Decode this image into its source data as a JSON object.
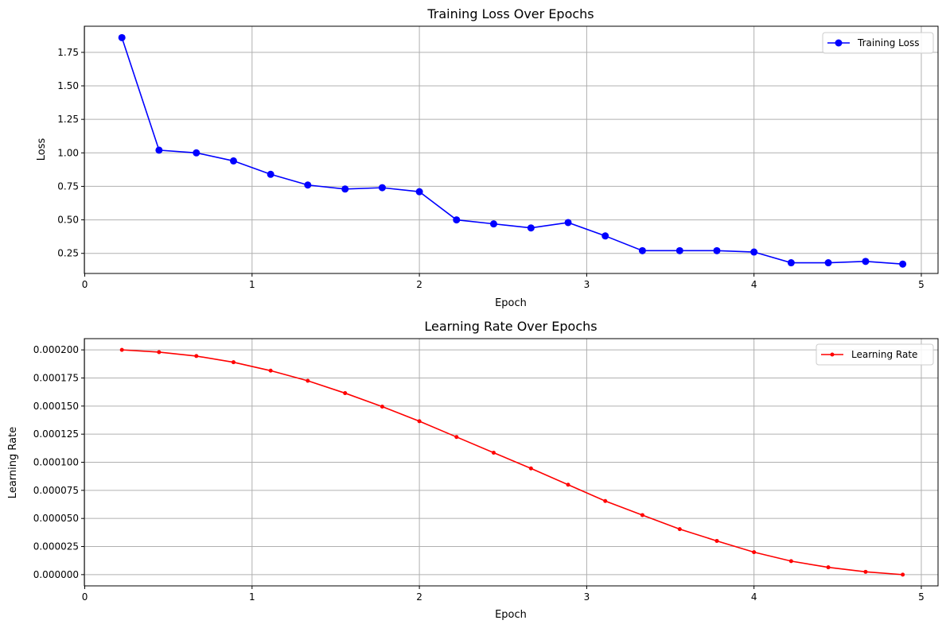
{
  "chart_data": [
    {
      "type": "line",
      "title": "Training Loss Over Epochs",
      "xlabel": "Epoch",
      "ylabel": "Loss",
      "xlim": [
        -0.0025,
        5.1
      ],
      "ylim": [
        0.1,
        1.945
      ],
      "xticks": [
        0,
        1,
        2,
        3,
        4,
        5
      ],
      "xtick_labels": [
        "0",
        "1",
        "2",
        "3",
        "4",
        "5"
      ],
      "yticks": [
        0.25,
        0.5,
        0.75,
        1.0,
        1.25,
        1.5,
        1.75
      ],
      "ytick_labels": [
        "0.25",
        "0.50",
        "0.75",
        "1.00",
        "1.25",
        "1.50",
        "1.75"
      ],
      "grid": true,
      "legend_position": "top-right",
      "series": [
        {
          "name": "Training Loss",
          "color": "#0000ff",
          "marker": "circle",
          "x": [
            0.222,
            0.444,
            0.667,
            0.889,
            1.111,
            1.333,
            1.556,
            1.778,
            2.0,
            2.222,
            2.444,
            2.667,
            2.889,
            3.111,
            3.333,
            3.556,
            3.778,
            4.0,
            4.222,
            4.444,
            4.667,
            4.889
          ],
          "values": [
            1.86,
            1.02,
            1.0,
            0.94,
            0.84,
            0.76,
            0.73,
            0.74,
            0.71,
            0.5,
            0.47,
            0.44,
            0.48,
            0.38,
            0.27,
            0.27,
            0.27,
            0.26,
            0.18,
            0.18,
            0.19,
            0.17
          ]
        }
      ]
    },
    {
      "type": "line",
      "title": "Learning Rate Over Epochs",
      "xlabel": "Epoch",
      "ylabel": "Learning Rate",
      "xlim": [
        -0.0025,
        5.1
      ],
      "ylim": [
        -1e-05,
        0.00021
      ],
      "xticks": [
        0,
        1,
        2,
        3,
        4,
        5
      ],
      "xtick_labels": [
        "0",
        "1",
        "2",
        "3",
        "4",
        "5"
      ],
      "yticks": [
        0,
        2.5e-05,
        5e-05,
        7.5e-05,
        0.0001,
        0.000125,
        0.00015,
        0.000175,
        0.0002
      ],
      "ytick_labels": [
        "0.000000",
        "0.000025",
        "0.000050",
        "0.000075",
        "0.000100",
        "0.000125",
        "0.000150",
        "0.000175",
        "0.000200"
      ],
      "grid": true,
      "legend_position": "top-right",
      "series": [
        {
          "name": "Learning Rate",
          "color": "#ff0000",
          "marker": "point",
          "x": [
            0.222,
            0.444,
            0.667,
            0.889,
            1.111,
            1.333,
            1.556,
            1.778,
            2.0,
            2.222,
            2.444,
            2.667,
            2.889,
            3.111,
            3.333,
            3.556,
            3.778,
            4.0,
            4.222,
            4.444,
            4.667,
            4.889
          ],
          "values": [
            0.0002,
            0.000198,
            0.0001945,
            0.000189,
            0.0001815,
            0.0001725,
            0.0001615,
            0.0001495,
            0.0001365,
            0.0001225,
            0.0001085,
            9.45e-05,
            8e-05,
            6.55e-05,
            5.3e-05,
            4.05e-05,
            3e-05,
            2e-05,
            1.2e-05,
            6.5e-06,
            2.5e-06,
            0.0
          ]
        }
      ]
    }
  ]
}
